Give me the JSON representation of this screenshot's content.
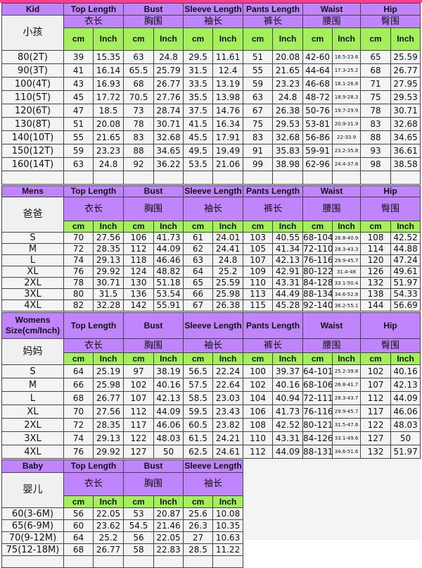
{
  "colors": {
    "header": "#c084fc",
    "units": "#a3f05a",
    "accent": "#ff3d8b"
  },
  "units": [
    "cm",
    "Inch"
  ],
  "sections": [
    {
      "title": "Kid",
      "title_cn": "小孩",
      "empty_row": true,
      "groups": [
        {
          "en": "Top Length",
          "cn": "衣长"
        },
        {
          "en": "Bust",
          "cn": "胸围"
        },
        {
          "en": "Sleeve Length",
          "cn": "袖长"
        },
        {
          "en": "Pants Length",
          "cn": "裤长"
        },
        {
          "en": "Waist",
          "cn": "腰围"
        },
        {
          "en": "Hip",
          "cn": "臀围"
        }
      ],
      "rows": [
        {
          "size": "80(2T)",
          "values": [
            "39",
            "15.35",
            "63",
            "24.8",
            "29.5",
            "11.61",
            "51",
            "20.08",
            "42-60",
            "16.5-23.6",
            "65",
            "25.59"
          ]
        },
        {
          "size": "90(3T)",
          "values": [
            "41",
            "16.14",
            "65.5",
            "25.79",
            "31.5",
            "12.4",
            "55",
            "21.65",
            "44-64",
            "17.3-25.2",
            "68",
            "26.77"
          ]
        },
        {
          "size": "100(4T)",
          "values": [
            "43",
            "16.93",
            "68",
            "26.77",
            "33.5",
            "13.19",
            "59",
            "23.23",
            "46-68",
            "18.1-26.8",
            "71",
            "27.95"
          ]
        },
        {
          "size": "110(5T)",
          "values": [
            "45",
            "17.72",
            "70.5",
            "27.76",
            "35.5",
            "13.98",
            "63",
            "24.8",
            "48-72",
            "18.9-28.3",
            "75",
            "29.53"
          ]
        },
        {
          "size": "120(6T)",
          "values": [
            "47",
            "18.5",
            "73",
            "28.74",
            "37.5",
            "14.76",
            "67",
            "26.38",
            "50-76",
            "19.7-29.9",
            "78",
            "30.71"
          ]
        },
        {
          "size": "130(8T)",
          "values": [
            "51",
            "20.08",
            "78",
            "30.71",
            "41.5",
            "16.34",
            "75",
            "29.53",
            "53-81",
            "20.9-31.9",
            "83",
            "32.68"
          ]
        },
        {
          "size": "140(10T)",
          "values": [
            "55",
            "21.65",
            "83",
            "32.68",
            "45.5",
            "17.91",
            "83",
            "32.68",
            "56-86",
            "22-33.9",
            "88",
            "34.65"
          ]
        },
        {
          "size": "150(12T)",
          "values": [
            "59",
            "23.23",
            "88",
            "34.65",
            "49.5",
            "19.49",
            "91",
            "35.83",
            "59-91",
            "23.2-35.8",
            "93",
            "36.61"
          ]
        },
        {
          "size": "160(14T)",
          "values": [
            "63",
            "24.8",
            "92",
            "36.22",
            "53.5",
            "21.06",
            "99",
            "38.98",
            "62-96",
            "24.4-37.8",
            "98",
            "38.58"
          ]
        }
      ]
    },
    {
      "title": "Mens",
      "title_cn": "爸爸",
      "empty_row": false,
      "groups": [
        {
          "en": "Top Length",
          "cn": "衣长"
        },
        {
          "en": "Bust",
          "cn": "胸围"
        },
        {
          "en": "Sleeve Length",
          "cn": "袖长"
        },
        {
          "en": "Pants Length",
          "cn": "裤长"
        },
        {
          "en": "Waist",
          "cn": "腰围"
        },
        {
          "en": "Hip",
          "cn": "臀围"
        }
      ],
      "rows": [
        {
          "size": "S",
          "values": [
            "70",
            "27.56",
            "106",
            "41.73",
            "61",
            "24.01",
            "103",
            "40.55",
            "68-104",
            "26.8-40.9",
            "108",
            "42.52"
          ]
        },
        {
          "size": "M",
          "values": [
            "72",
            "28.35",
            "112",
            "44.09",
            "62",
            "24.41",
            "105",
            "41.34",
            "72-110",
            "28.3-43.3",
            "114",
            "44.88"
          ]
        },
        {
          "size": "L",
          "values": [
            "74",
            "29.13",
            "118",
            "46.46",
            "63",
            "24.8",
            "107",
            "42.13",
            "76-116",
            "29.9-45.7",
            "120",
            "47.24"
          ]
        },
        {
          "size": "XL",
          "values": [
            "76",
            "29.92",
            "124",
            "48.82",
            "64",
            "25.2",
            "109",
            "42.91",
            "80-122",
            "31.4-48",
            "126",
            "49.61"
          ]
        },
        {
          "size": "2XL",
          "values": [
            "78",
            "30.71",
            "130",
            "51.18",
            "65",
            "25.59",
            "110",
            "43.31",
            "84-128",
            "33.1-50.4",
            "132",
            "51.97"
          ]
        },
        {
          "size": "3XL",
          "values": [
            "80",
            "31.5",
            "136",
            "53.54",
            "66",
            "25.98",
            "113",
            "44.49",
            "88-134",
            "34.6-52.8",
            "138",
            "54.33"
          ]
        },
        {
          "size": "4XL",
          "values": [
            "82",
            "32.28",
            "142",
            "55.91",
            "67",
            "26.38",
            "115",
            "45.28",
            "92-140",
            "36.2-55.1",
            "144",
            "56.69"
          ]
        }
      ]
    },
    {
      "title": "Womens Size(cm/Inch)",
      "title_cn": "妈妈",
      "empty_row": false,
      "groups": [
        {
          "en": "Top Length",
          "cn": "衣长"
        },
        {
          "en": "Bust",
          "cn": "胸围"
        },
        {
          "en": "Sleeve Length",
          "cn": "袖长"
        },
        {
          "en": "Pants Length",
          "cn": "裤长"
        },
        {
          "en": "Waist",
          "cn": "腰围"
        },
        {
          "en": "Hip",
          "cn": "臀围"
        }
      ],
      "rows": [
        {
          "size": "S",
          "values": [
            "64",
            "25.19",
            "97",
            "38.19",
            "56.5",
            "22.24",
            "100",
            "39.37",
            "64-101",
            "25.2-39.8",
            "102",
            "40.16"
          ]
        },
        {
          "size": "M",
          "values": [
            "66",
            "25.98",
            "102",
            "40.16",
            "57.5",
            "22.64",
            "102",
            "40.16",
            "68-106",
            "26.8-41.7",
            "107",
            "42.13"
          ]
        },
        {
          "size": "L",
          "values": [
            "68",
            "26.77",
            "107",
            "42.13",
            "58.5",
            "23.03",
            "104",
            "40.94",
            "72-111",
            "28.3-43.7",
            "112",
            "44.09"
          ]
        },
        {
          "size": "XL",
          "values": [
            "70",
            "27.56",
            "112",
            "44.09",
            "59.5",
            "23.43",
            "106",
            "41.73",
            "76-116",
            "29.9-45.7",
            "117",
            "46.06"
          ]
        },
        {
          "size": "2XL",
          "values": [
            "72",
            "28.35",
            "117",
            "46.06",
            "60.5",
            "23.82",
            "108",
            "42.52",
            "80-121",
            "31.5-47.6",
            "122",
            "48.03"
          ]
        },
        {
          "size": "3XL",
          "values": [
            "74",
            "29.13",
            "122",
            "48.03",
            "61.5",
            "24.21",
            "110",
            "43.31",
            "84-126",
            "33.1-49.6",
            "127",
            "50"
          ]
        },
        {
          "size": "4XL",
          "values": [
            "76",
            "29.92",
            "127",
            "50",
            "62.5",
            "24.61",
            "112",
            "44.09",
            "88-131",
            "34.6-51.6",
            "132",
            "51.97"
          ]
        }
      ]
    },
    {
      "title": "Baby",
      "title_cn": "婴儿",
      "empty_row": true,
      "groups": [
        {
          "en": "Top Length",
          "cn": "衣长"
        },
        {
          "en": "Bust",
          "cn": "胸围"
        },
        {
          "en": "Sleeve Length",
          "cn": "袖长"
        }
      ],
      "rows": [
        {
          "size": "60(3-6M)",
          "values": [
            "56",
            "22.05",
            "53",
            "20.87",
            "25.6",
            "10.08"
          ]
        },
        {
          "size": "65(6-9M)",
          "values": [
            "60",
            "23.62",
            "54.5",
            "21.46",
            "26.3",
            "10.35"
          ]
        },
        {
          "size": "70(9-12M)",
          "values": [
            "64",
            "25.2",
            "56",
            "22.05",
            "27",
            "10.63"
          ]
        },
        {
          "size": "75(12-18M)",
          "values": [
            "68",
            "26.77",
            "58",
            "22.83",
            "28.5",
            "11.22"
          ]
        }
      ]
    }
  ]
}
